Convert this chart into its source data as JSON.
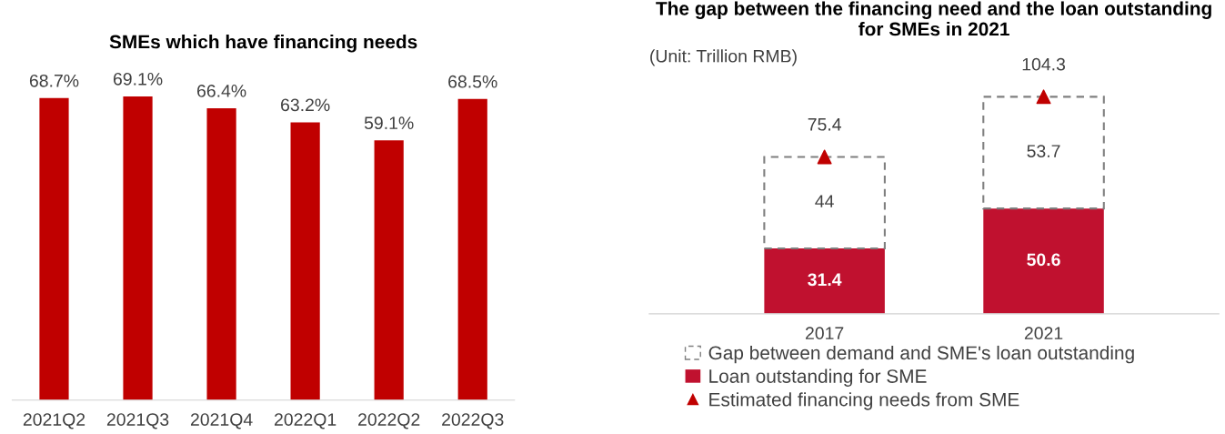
{
  "chart_data": [
    {
      "type": "bar",
      "title": "SMEs which have financing needs",
      "categories": [
        "2021Q2",
        "2021Q3",
        "2021Q4",
        "2022Q1",
        "2022Q2",
        "2022Q3"
      ],
      "series": [
        {
          "color": "#c00000",
          "values": [
            68.7,
            69.1,
            66.4,
            63.2,
            59.1,
            68.5
          ],
          "value_labels": [
            "68.7%",
            "69.1%",
            "66.4%",
            "63.2%",
            "59.1%",
            "68.5%"
          ]
        }
      ],
      "legend": false,
      "grid": false
    },
    {
      "type": "bar",
      "title": "The gap between the financing need and the loan outstanding for SMEs in 2021",
      "categories": [
        "2017",
        "2021"
      ],
      "stacked": true,
      "annotations": [
        "(Unit: Trillion RMB)"
      ],
      "series": [
        {
          "name": "Loan outstanding for SME",
          "type": "bar",
          "color": "#c0112f",
          "values": [
            31.4,
            50.6
          ]
        },
        {
          "name": "Gap between demand and SME's loan outstanding",
          "type": "bar",
          "color": "#7f7f7f",
          "line_style": "dashed",
          "values": [
            44,
            53.7
          ]
        },
        {
          "name": "Estimated financing needs from SME",
          "type": "scatter",
          "marker": "triangle",
          "color": "#c00000",
          "values": [
            75.4,
            104.3
          ]
        }
      ],
      "data_labels": true,
      "legend": "bottom",
      "grid": false
    }
  ]
}
